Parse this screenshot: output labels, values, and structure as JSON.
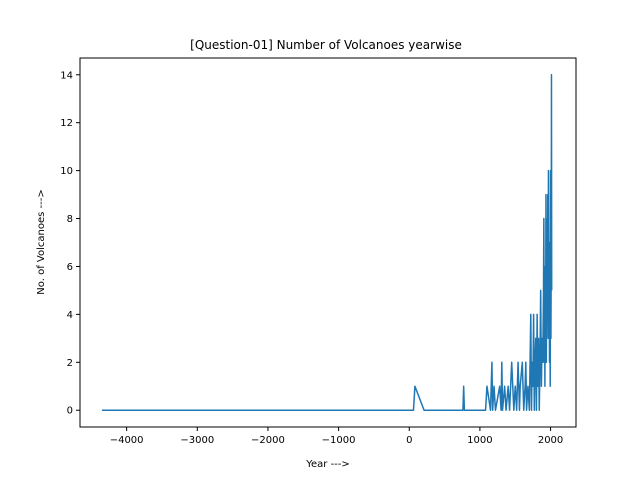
{
  "chart_data": {
    "type": "line",
    "title": "[Question-01] Number of Volcanoes yearwise",
    "xlabel": "Year --->",
    "ylabel": "No. of Volcanoes --->",
    "xlim": [
      -4660,
      2360
    ],
    "ylim": [
      -0.7,
      14.7
    ],
    "xticks": [
      -4000,
      -3000,
      -2000,
      -1000,
      0,
      1000,
      2000
    ],
    "xtick_labels": [
      "−4000",
      "−3000",
      "−2000",
      "−1000",
      "0",
      "1000",
      "2000"
    ],
    "yticks": [
      0,
      2,
      4,
      6,
      8,
      10,
      12,
      14
    ],
    "ytick_labels": [
      "0",
      "2",
      "4",
      "6",
      "8",
      "10",
      "12",
      "14"
    ],
    "grid": false,
    "line_color": "#1f77b4",
    "series": [
      {
        "x": [
          -4350,
          60,
          80,
          210,
          760,
          770,
          780,
          1080,
          1100,
          1150,
          1170,
          1180,
          1200,
          1220,
          1280,
          1300,
          1310,
          1320,
          1350,
          1370,
          1400,
          1420,
          1450,
          1480,
          1500,
          1520,
          1540,
          1560,
          1570,
          1600,
          1620,
          1640,
          1650,
          1660,
          1680,
          1700,
          1710,
          1720,
          1730,
          1740,
          1750,
          1760,
          1770,
          1780,
          1790,
          1800,
          1810,
          1820,
          1830,
          1840,
          1850,
          1860,
          1870,
          1880,
          1890,
          1900,
          1905,
          1910,
          1915,
          1920,
          1925,
          1930,
          1935,
          1940,
          1945,
          1950,
          1955,
          1960,
          1965,
          1970,
          1975,
          1980,
          1985,
          1990,
          1995,
          2000,
          2005,
          2010,
          2013,
          2016
        ],
        "y": [
          0,
          0,
          1,
          0,
          0,
          1,
          0,
          0,
          1,
          0,
          2,
          0,
          1,
          0,
          1,
          0,
          2,
          0,
          1,
          0,
          1,
          0,
          2,
          0,
          1,
          0,
          2,
          0,
          1,
          2,
          0,
          1,
          2,
          0,
          1,
          0,
          2,
          4,
          0,
          2,
          1,
          4,
          0,
          2,
          3,
          0,
          4,
          1,
          3,
          0,
          2,
          5,
          1,
          3,
          2,
          5,
          8,
          2,
          5,
          1,
          6,
          3,
          9,
          2,
          5,
          8,
          4,
          9,
          3,
          10,
          5,
          7,
          2,
          6,
          1,
          10,
          3,
          7,
          14,
          5
        ]
      }
    ]
  }
}
